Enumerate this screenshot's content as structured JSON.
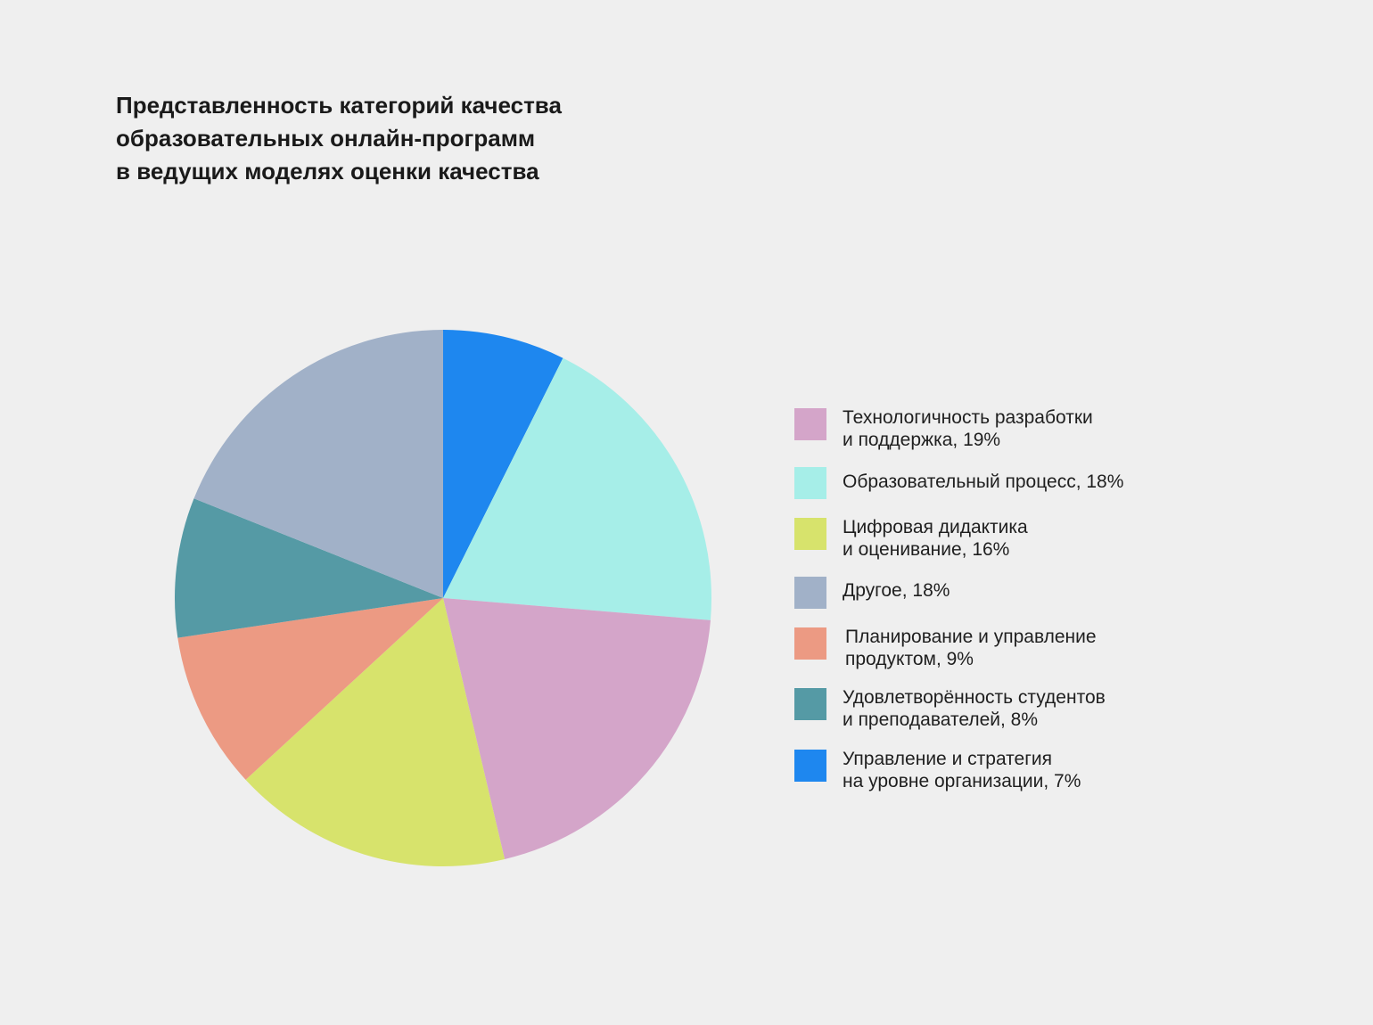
{
  "chart_data": {
    "type": "pie",
    "title_lines": [
      "Представленность категорий качества",
      "образовательных онлайн-программ",
      "в ведущих моделях оценки качества"
    ],
    "slices": [
      {
        "label": "Технологичность разработки\nи поддержка, 19%",
        "value": 19,
        "color": "#d4a5c9"
      },
      {
        "label": "Образовательный процесс, 18%",
        "value": 18,
        "color": "#a6eee8"
      },
      {
        "label": "Цифровая дидактика\nи оценивание, 16%",
        "value": 16,
        "color": "#d7e36c"
      },
      {
        "label": "Другое, 18%",
        "value": 18,
        "color": "#a1b1c8"
      },
      {
        "label": "Планирование и управление\nпродуктом, 9%",
        "value": 9,
        "color": "#ec9a83"
      },
      {
        "label": "Удовлетворённость студентов\nи преподавателей, 8%",
        "value": 8,
        "color": "#559aa5"
      },
      {
        "label": "Управление и стратегия\nна уровне организации, 7%",
        "value": 7,
        "color": "#1e87ef"
      }
    ],
    "legend_position": "right"
  }
}
